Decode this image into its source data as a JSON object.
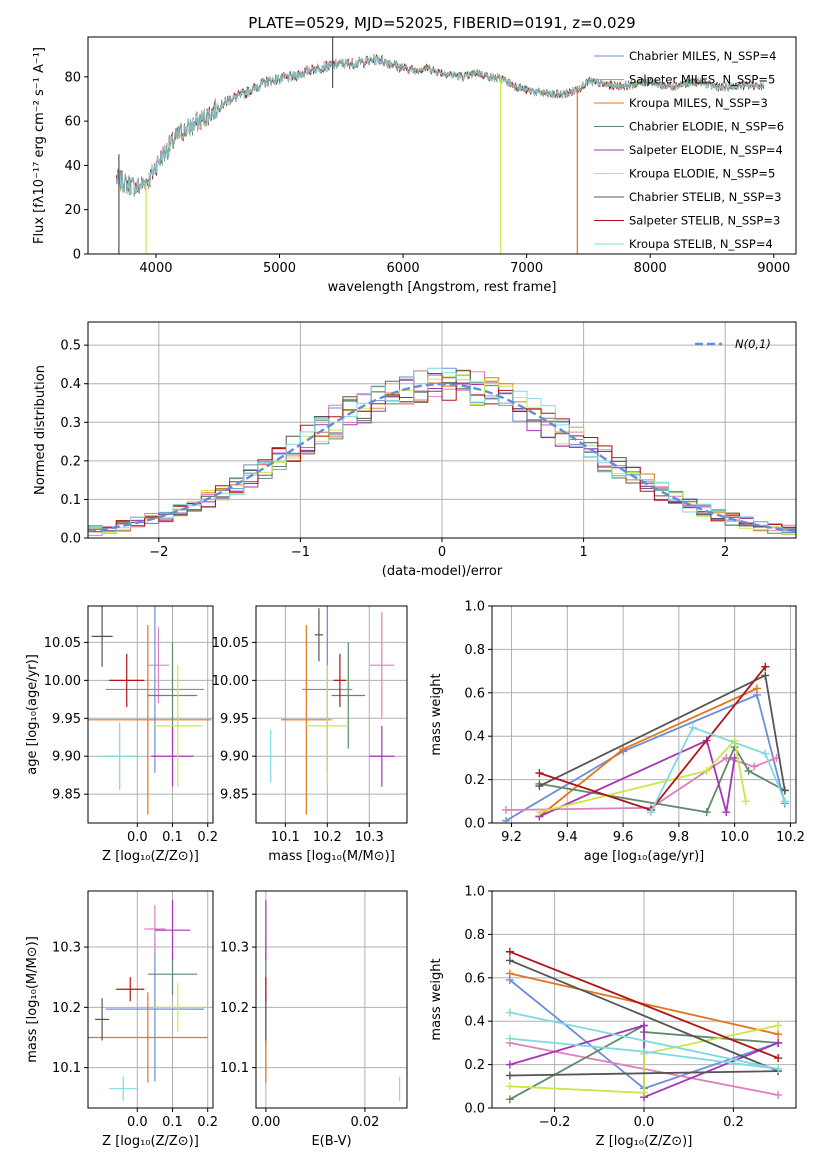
{
  "colors": {
    "series": [
      "#6b8fd8",
      "#e07fc0",
      "#e2761f",
      "#5f8a6a",
      "#a636b6",
      "#cce64a",
      "#555555",
      "#b31313",
      "#7fdadf"
    ],
    "grid": "#b0b0b0",
    "dashed_model": "#5f8fd8"
  },
  "chart_data": [
    {
      "id": "spectrum",
      "type": "line",
      "title": "PLATE=0529, MJD=52025, FIBERID=0191, z=0.029",
      "xlabel": "wavelength [Angstrom, rest frame]",
      "ylabel": "Flux [fλ10⁻¹⁷ erg cm⁻² s⁻¹ A⁻¹]",
      "xlim": [
        3450,
        9180
      ],
      "ylim": [
        0,
        98
      ],
      "xticks": [
        4000,
        5000,
        6000,
        7000,
        8000,
        9000
      ],
      "yticks": [
        0,
        20,
        40,
        60,
        80
      ],
      "grid": false,
      "legend_position": "top-right",
      "legend": [
        "Chabrier MILES, N_SSP=4",
        "Salpeter MILES, N_SSP=5",
        "Kroupa MILES, N_SSP=3",
        "Chabrier ELODIE, N_SSP=6",
        "Salpeter ELODIE, N_SSP=4",
        "Kroupa ELODIE, N_SSP=5",
        "Chabrier STELIB, N_SSP=3",
        "Salpeter STELIB, N_SSP=3",
        "Kroupa STELIB, N_SSP=4"
      ],
      "continuum": [
        [
          3680,
          34
        ],
        [
          3750,
          32
        ],
        [
          3850,
          30
        ],
        [
          3950,
          34
        ],
        [
          4000,
          40
        ],
        [
          4100,
          48
        ],
        [
          4200,
          55
        ],
        [
          4300,
          58
        ],
        [
          4400,
          62
        ],
        [
          4500,
          66
        ],
        [
          4600,
          70
        ],
        [
          4700,
          72
        ],
        [
          4800,
          75
        ],
        [
          4900,
          78
        ],
        [
          5000,
          79
        ],
        [
          5100,
          80
        ],
        [
          5200,
          82
        ],
        [
          5300,
          84
        ],
        [
          5400,
          85
        ],
        [
          5500,
          86
        ],
        [
          5600,
          86
        ],
        [
          5700,
          87
        ],
        [
          5800,
          88
        ],
        [
          5900,
          86
        ],
        [
          6000,
          84
        ],
        [
          6100,
          83
        ],
        [
          6200,
          84
        ],
        [
          6300,
          82
        ],
        [
          6400,
          81
        ],
        [
          6500,
          80
        ],
        [
          6600,
          82
        ],
        [
          6700,
          80
        ],
        [
          6800,
          79
        ],
        [
          6900,
          76
        ],
        [
          7000,
          74
        ],
        [
          7100,
          73
        ],
        [
          7200,
          72
        ],
        [
          7300,
          72
        ],
        [
          7400,
          74
        ],
        [
          7500,
          78
        ],
        [
          7600,
          77
        ],
        [
          7700,
          76
        ],
        [
          7800,
          76
        ],
        [
          7900,
          77
        ],
        [
          8000,
          78
        ],
        [
          8100,
          76
        ],
        [
          8200,
          76
        ],
        [
          8300,
          77
        ],
        [
          8400,
          78
        ],
        [
          8500,
          76
        ],
        [
          8600,
          75
        ],
        [
          8700,
          76
        ],
        [
          8800,
          76
        ],
        [
          8900,
          76
        ],
        [
          8920,
          76
        ]
      ],
      "spikes": [
        {
          "x": 3700,
          "y": [
            0,
            45
          ],
          "series": 6
        },
        {
          "x": 3920,
          "y": [
            0,
            32
          ],
          "series": 5
        },
        {
          "x": 5430,
          "y": [
            75,
            98
          ],
          "series": 6
        },
        {
          "x": 6790,
          "y": [
            0,
            80
          ],
          "series": 5
        },
        {
          "x": 7410,
          "y": [
            0,
            76
          ],
          "series": 2
        }
      ]
    },
    {
      "id": "residuals",
      "type": "step-histogram",
      "xlabel": "(data-model)/error",
      "ylabel": "Normed distribution",
      "xlim": [
        -2.5,
        2.5
      ],
      "ylim": [
        0,
        0.56
      ],
      "xticks": [
        -2,
        -1,
        0,
        1,
        2
      ],
      "yticks": [
        0.0,
        0.1,
        0.2,
        0.3,
        0.4,
        0.5
      ],
      "grid": true,
      "legend_position": "top-right",
      "legend": [
        "N(0,1)"
      ],
      "bin_width": 0.1,
      "model": "normal pdf, mean 0, sigma 1"
    },
    {
      "id": "age-vs-Z",
      "type": "errorbar",
      "xlabel": "Z [log₁₀(Z/Z⊙)]",
      "ylabel": "age  [log₁₀(age/yr)]",
      "xlim": [
        -0.14,
        0.215
      ],
      "ylim": [
        9.812,
        10.098
      ],
      "xticks": [
        0.0,
        0.1,
        0.2
      ],
      "yticks": [
        9.85,
        9.9,
        9.95,
        10.0,
        10.05
      ],
      "grid": true,
      "points": [
        {
          "series": 0,
          "x": 0.05,
          "xerr": 0.14,
          "y": 9.988,
          "yerr": 0.11
        },
        {
          "series": 1,
          "x": 0.06,
          "xerr": 0.03,
          "y": 10.02,
          "yerr": 0.05
        },
        {
          "series": 2,
          "x": 0.03,
          "xerr": 0.18,
          "y": 9.948,
          "yerr": 0.125
        },
        {
          "series": 3,
          "x": 0.1,
          "xerr": 0.07,
          "y": 9.98,
          "yerr": 0.07
        },
        {
          "series": 4,
          "x": 0.1,
          "xerr": 0.06,
          "y": 9.9,
          "yerr": 0.04
        },
        {
          "series": 5,
          "x": 0.115,
          "xerr": 0.07,
          "y": 9.94,
          "yerr": 0.08
        },
        {
          "series": 6,
          "x": -0.1,
          "xerr": 0.03,
          "y": 10.058,
          "yerr": 0.04
        },
        {
          "series": 7,
          "x": -0.03,
          "xerr": 0.05,
          "y": 10.0,
          "yerr": 0.035
        },
        {
          "series": 8,
          "x": -0.05,
          "xerr": 0.05,
          "y": 9.9,
          "yerr": 0.045
        }
      ]
    },
    {
      "id": "age-vs-mass",
      "type": "errorbar",
      "xlabel": "mass [log₁₀(M/M⊙)]",
      "ylabel": "",
      "xlim": [
        10.03,
        10.39
      ],
      "ylim": [
        9.812,
        10.098
      ],
      "xticks": [
        10.1,
        10.2,
        10.3
      ],
      "yticks": [
        9.85,
        9.9,
        9.95,
        10.0,
        10.05
      ],
      "grid": true,
      "points": [
        {
          "series": 0,
          "x": 10.2,
          "xerr": 0.06,
          "y": 9.988,
          "yerr": 0.11
        },
        {
          "series": 1,
          "x": 10.33,
          "xerr": 0.03,
          "y": 10.02,
          "yerr": 0.07
        },
        {
          "series": 2,
          "x": 10.15,
          "xerr": 0.06,
          "y": 9.948,
          "yerr": 0.125
        },
        {
          "series": 3,
          "x": 10.25,
          "xerr": 0.04,
          "y": 9.98,
          "yerr": 0.07
        },
        {
          "series": 4,
          "x": 10.33,
          "xerr": 0.03,
          "y": 9.9,
          "yerr": 0.04
        },
        {
          "series": 5,
          "x": 10.2,
          "xerr": 0.05,
          "y": 9.94,
          "yerr": 0.08
        },
        {
          "series": 6,
          "x": 10.18,
          "xerr": 0.01,
          "y": 10.06,
          "yerr": 0.035
        },
        {
          "series": 7,
          "x": 10.23,
          "xerr": 0.015,
          "y": 10.0,
          "yerr": 0.035
        },
        {
          "series": 8,
          "x": 10.065,
          "xerr": 0.005,
          "y": 9.9,
          "yerr": 0.035
        }
      ]
    },
    {
      "id": "weight-vs-age",
      "type": "line",
      "xlabel": "age  [log₁₀(age/yr)]",
      "ylabel": "mass weight",
      "xlim": [
        9.13,
        10.22
      ],
      "ylim": [
        0,
        1.0
      ],
      "xticks": [
        9.2,
        9.4,
        9.6,
        9.8,
        10.0,
        10.2
      ],
      "yticks": [
        0.0,
        0.2,
        0.4,
        0.6,
        0.8,
        1.0
      ],
      "grid": true,
      "series": [
        {
          "series": 0,
          "points": [
            [
              9.18,
              0.01
            ],
            [
              9.6,
              0.33
            ],
            [
              10.08,
              0.59
            ],
            [
              10.18,
              0.09
            ]
          ]
        },
        {
          "series": 1,
          "points": [
            [
              9.18,
              0.06
            ],
            [
              9.7,
              0.07
            ],
            [
              9.97,
              0.3
            ],
            [
              10.07,
              0.26
            ],
            [
              10.15,
              0.3
            ]
          ]
        },
        {
          "series": 2,
          "points": [
            [
              9.3,
              0.03
            ],
            [
              9.6,
              0.34
            ],
            [
              10.08,
              0.62
            ]
          ]
        },
        {
          "series": 3,
          "points": [
            [
              9.3,
              0.18
            ],
            [
              9.9,
              0.05
            ],
            [
              10.0,
              0.35
            ],
            [
              10.05,
              0.24
            ],
            [
              10.18,
              0.15
            ]
          ]
        },
        {
          "series": 4,
          "points": [
            [
              9.3,
              0.03
            ],
            [
              9.9,
              0.38
            ],
            [
              9.97,
              0.05
            ],
            [
              10.0,
              0.3
            ]
          ]
        },
        {
          "series": 5,
          "points": [
            [
              9.3,
              0.05
            ],
            [
              9.9,
              0.24
            ],
            [
              10.0,
              0.38
            ],
            [
              10.04,
              0.1
            ]
          ]
        },
        {
          "series": 6,
          "points": [
            [
              9.3,
              0.17
            ],
            [
              10.11,
              0.68
            ],
            [
              10.18,
              0.15
            ]
          ]
        },
        {
          "series": 7,
          "points": [
            [
              9.3,
              0.23
            ],
            [
              9.7,
              0.06
            ],
            [
              10.11,
              0.72
            ]
          ]
        },
        {
          "series": 8,
          "points": [
            [
              9.7,
              0.05
            ],
            [
              9.85,
              0.44
            ],
            [
              10.11,
              0.32
            ],
            [
              10.18,
              0.1
            ]
          ]
        }
      ]
    },
    {
      "id": "mass-vs-Z",
      "type": "errorbar",
      "xlabel": "Z [log₁₀(Z/Z⊙)]",
      "ylabel": "mass [log₁₀(M/M⊙)]",
      "xlim": [
        -0.14,
        0.215
      ],
      "ylim": [
        10.033,
        10.393
      ],
      "xticks": [
        0.0,
        0.1,
        0.2
      ],
      "yticks": [
        10.1,
        10.2,
        10.3
      ],
      "grid": true,
      "points": [
        {
          "series": 0,
          "x": 0.05,
          "xerr": 0.14,
          "y": 10.197,
          "yerr": 0.12
        },
        {
          "series": 1,
          "x": 0.05,
          "xerr": 0.03,
          "y": 10.33,
          "yerr": 0.04
        },
        {
          "series": 2,
          "x": 0.03,
          "xerr": 0.17,
          "y": 10.15,
          "yerr": 0.075
        },
        {
          "series": 3,
          "x": 0.1,
          "xerr": 0.07,
          "y": 10.255,
          "yerr": 0.035
        },
        {
          "series": 4,
          "x": 0.1,
          "xerr": 0.05,
          "y": 10.328,
          "yerr": 0.05
        },
        {
          "series": 5,
          "x": 0.115,
          "xerr": 0.07,
          "y": 10.2,
          "yerr": 0.04
        },
        {
          "series": 6,
          "x": -0.1,
          "xerr": 0.02,
          "y": 10.18,
          "yerr": 0.035
        },
        {
          "series": 7,
          "x": -0.02,
          "xerr": 0.04,
          "y": 10.23,
          "yerr": 0.02
        },
        {
          "series": 8,
          "x": -0.04,
          "xerr": 0.04,
          "y": 10.065,
          "yerr": 0.02
        }
      ]
    },
    {
      "id": "mass-vs-ebv",
      "type": "errorbar",
      "xlabel": "E(B-V)",
      "ylabel": "",
      "xlim": [
        -0.002,
        0.0285
      ],
      "ylim": [
        10.033,
        10.393
      ],
      "xticks": [
        0.0,
        0.02
      ],
      "yticks": [
        10.1,
        10.2,
        10.3
      ],
      "grid": true,
      "points": [
        {
          "series": 0,
          "x": 0.0,
          "xerr": 0.0,
          "y": 10.197,
          "yerr": 0.12
        },
        {
          "series": 1,
          "x": 0.0,
          "xerr": 0.0,
          "y": 10.33,
          "yerr": 0.04
        },
        {
          "series": 2,
          "x": 0.0,
          "xerr": 0.0,
          "y": 10.15,
          "yerr": 0.075
        },
        {
          "series": 3,
          "x": 0.0,
          "xerr": 0.0,
          "y": 10.255,
          "yerr": 0.035
        },
        {
          "series": 4,
          "x": 0.0,
          "xerr": 0.0,
          "y": 10.328,
          "yerr": 0.05
        },
        {
          "series": 5,
          "x": 0.0,
          "xerr": 0.0,
          "y": 10.2,
          "yerr": 0.04
        },
        {
          "series": 6,
          "x": 0.0,
          "xerr": 0.0,
          "y": 10.18,
          "yerr": 0.035
        },
        {
          "series": 7,
          "x": 0.0,
          "xerr": 0.0,
          "y": 10.23,
          "yerr": 0.02
        },
        {
          "series": 8,
          "x": 0.027,
          "xerr": 0.0,
          "y": 10.065,
          "yerr": 0.02
        }
      ]
    },
    {
      "id": "weight-vs-Z",
      "type": "line",
      "xlabel": "Z [log₁₀(Z/Z⊙)]",
      "ylabel": "mass weight",
      "xlim": [
        -0.34,
        0.34
      ],
      "ylim": [
        0,
        1.0
      ],
      "xticks": [
        -0.2,
        0.0,
        0.2
      ],
      "yticks": [
        0.0,
        0.2,
        0.4,
        0.6,
        0.8,
        1.0
      ],
      "grid": true,
      "series": [
        {
          "series": 0,
          "points": [
            [
              -0.3,
              0.59
            ],
            [
              0.0,
              0.09
            ],
            [
              0.3,
              0.3
            ]
          ]
        },
        {
          "series": 1,
          "points": [
            [
              -0.3,
              0.3
            ],
            [
              0.3,
              0.06
            ]
          ]
        },
        {
          "series": 2,
          "points": [
            [
              -0.3,
              0.62
            ],
            [
              0.3,
              0.34
            ]
          ]
        },
        {
          "series": 3,
          "points": [
            [
              -0.3,
              0.04
            ],
            [
              0.0,
              0.38
            ],
            [
              0.0,
              0.35
            ],
            [
              0.3,
              0.3
            ]
          ]
        },
        {
          "series": 4,
          "points": [
            [
              -0.3,
              0.2
            ],
            [
              0.0,
              0.38
            ],
            [
              0.0,
              0.05
            ],
            [
              0.3,
              0.3
            ]
          ]
        },
        {
          "series": 5,
          "points": [
            [
              -0.3,
              0.1
            ],
            [
              0.0,
              0.07
            ],
            [
              0.0,
              0.25
            ],
            [
              0.3,
              0.38
            ]
          ]
        },
        {
          "series": 6,
          "points": [
            [
              -0.3,
              0.15
            ],
            [
              0.3,
              0.17
            ],
            [
              -0.3,
              0.68
            ]
          ]
        },
        {
          "series": 7,
          "points": [
            [
              -0.3,
              0.72
            ],
            [
              0.3,
              0.23
            ]
          ]
        },
        {
          "series": 8,
          "points": [
            [
              -0.3,
              0.32
            ],
            [
              0.0,
              0.26
            ],
            [
              0.3,
              0.18
            ],
            [
              -0.3,
              0.44
            ]
          ]
        }
      ]
    }
  ]
}
